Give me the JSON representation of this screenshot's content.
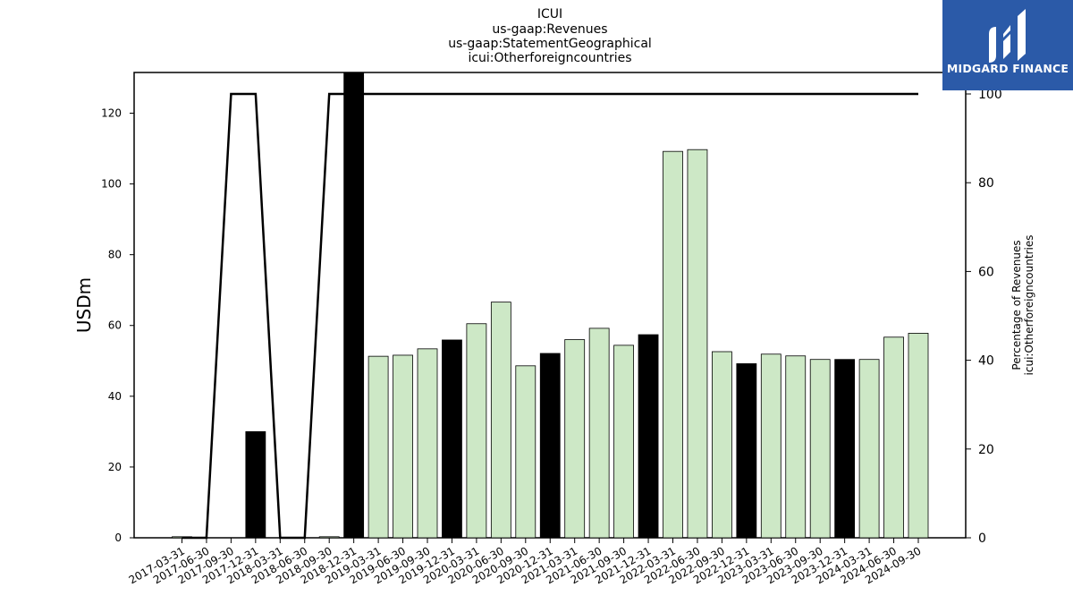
{
  "logo": {
    "text": "MIDGARD FINANCE",
    "background": "#2b5aa8"
  },
  "chart_data": {
    "type": "bar",
    "title_lines": [
      "ICUI",
      "us-gaap:Revenues",
      "us-gaap:StatementGeographical",
      "icui:Otherforeigncountries"
    ],
    "ylabel": "USDm",
    "y2label_lines": [
      "Percentage of Revenues",
      "icui:Otherforeigncountries"
    ],
    "ylim": [
      0,
      131.5
    ],
    "y2lim": [
      0,
      100
    ],
    "yticks": [
      0,
      20,
      40,
      60,
      80,
      100,
      120
    ],
    "y2ticks": [
      0,
      20,
      40,
      60,
      80,
      100
    ],
    "categories": [
      "2017-03-31",
      "2017-06-30",
      "2017-09-30",
      "2017-12-31",
      "2018-03-31",
      "2018-06-30",
      "2018-09-30",
      "2018-12-31",
      "2019-03-31",
      "2019-06-30",
      "2019-09-30",
      "2019-12-31",
      "2020-03-31",
      "2020-06-30",
      "2020-09-30",
      "2020-12-31",
      "2021-03-31",
      "2021-06-30",
      "2021-09-30",
      "2021-12-31",
      "2022-03-31",
      "2022-06-30",
      "2022-09-30",
      "2022-12-31",
      "2023-03-31",
      "2023-06-30",
      "2023-09-30",
      "2023-12-31",
      "2024-03-31",
      "2024-06-30",
      "2024-09-30"
    ],
    "series": [
      {
        "kind": "bar",
        "values": [
          0.3,
          null,
          null,
          30,
          null,
          null,
          0.3,
          131.5,
          51.3,
          51.6,
          53.4,
          55.9,
          60.5,
          66.6,
          48.6,
          52.1,
          56.0,
          59.2,
          54.4,
          57.4,
          109.2,
          109.7,
          52.6,
          49.2,
          51.9,
          51.4,
          50.4,
          50.4,
          50.4,
          56.7,
          57.8
        ],
        "annual": [
          false,
          false,
          false,
          true,
          false,
          false,
          false,
          true,
          false,
          false,
          false,
          true,
          false,
          false,
          false,
          true,
          false,
          false,
          false,
          true,
          false,
          false,
          false,
          true,
          false,
          false,
          false,
          true,
          false,
          false,
          false
        ]
      },
      {
        "kind": "line",
        "axis": "right",
        "values": [
          0,
          0,
          100,
          100,
          0,
          0,
          100,
          100,
          100,
          100,
          100,
          100,
          100,
          100,
          100,
          100,
          100,
          100,
          100,
          100,
          100,
          100,
          100,
          100,
          100,
          100,
          100,
          100,
          100,
          100,
          100
        ]
      }
    ],
    "colors": {
      "quarter_bar": "#cde8c6",
      "annual_bar": "#000000",
      "line": "#000000"
    }
  }
}
